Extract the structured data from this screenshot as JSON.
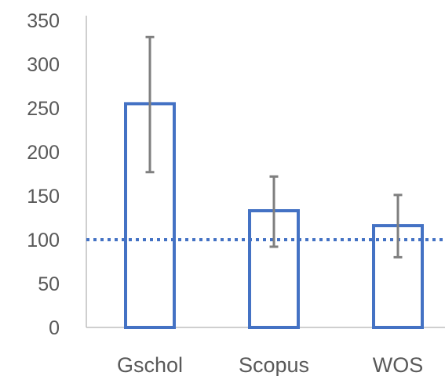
{
  "chart_data": {
    "type": "bar",
    "categories": [
      "Gschol",
      "Scopus",
      "WOS"
    ],
    "values": [
      255,
      133,
      116
    ],
    "error_bars": [
      {
        "low": 177,
        "high": 331
      },
      {
        "low": 92,
        "high": 172
      },
      {
        "low": 80,
        "high": 151
      }
    ],
    "reference_line": 100,
    "ylim": [
      0,
      350
    ],
    "yticks": [
      0,
      50,
      100,
      150,
      200,
      250,
      300,
      350
    ],
    "title": "",
    "xlabel": "",
    "ylabel": "",
    "grid": false,
    "colors": {
      "bar_stroke": "#4472C4",
      "bar_fill": "#FFFFFF",
      "error_bar": "#7F7F7F",
      "reference_line": "#4472C4",
      "axis": "#BFBFBF",
      "text": "#595959"
    }
  }
}
